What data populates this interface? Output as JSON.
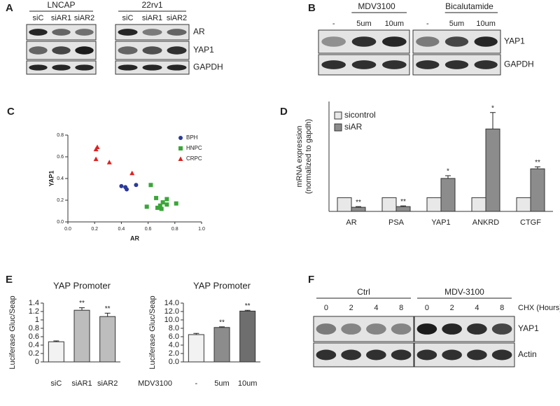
{
  "panels": {
    "a": {
      "label": "A",
      "groups": [
        {
          "name": "LNCAP",
          "lanes": [
            "siC",
            "siAR1",
            "siAR2"
          ]
        },
        {
          "name": "22rv1",
          "lanes": [
            "siC",
            "siAR1",
            "siAR2"
          ]
        }
      ],
      "rows": [
        "AR",
        "YAP1",
        "GAPDH"
      ]
    },
    "b": {
      "label": "B",
      "groups": [
        {
          "name": "MDV3100",
          "lanes": [
            "-",
            "5um",
            "10um"
          ]
        },
        {
          "name": "Bicalutamide",
          "lanes": [
            "-",
            "5um",
            "10um"
          ]
        }
      ],
      "rows": [
        "YAP1",
        "GAPDH"
      ]
    },
    "f": {
      "label": "F",
      "groups": [
        {
          "name": "Ctrl",
          "lanes": [
            "0",
            "2",
            "4",
            "8"
          ]
        },
        {
          "name": "MDV-3100",
          "lanes": [
            "0",
            "2",
            "4",
            "8"
          ]
        }
      ],
      "lane_axis": "CHX (Hours)",
      "rows": [
        "YAP1",
        "Actin"
      ]
    }
  },
  "chart_data": [
    {
      "type": "scatter",
      "panel": "C",
      "xlabel": "AR",
      "ylabel": "YAP1",
      "xlim": [
        0,
        1
      ],
      "ylim": [
        0,
        0.8
      ],
      "xticks": [
        {
          "value": 0,
          "label": "0.0"
        },
        0.2,
        0.4,
        0.6,
        0.8,
        {
          "value": 1,
          "label": "1.0"
        }
      ],
      "yticks": [
        {
          "value": 0,
          "label": "0.0"
        },
        0.2,
        0.4,
        0.6,
        0.8
      ],
      "legend": "top-right",
      "series": [
        {
          "name": "BPH",
          "color": "#2b3a9a",
          "marker": "circle",
          "x": [
            0.4,
            0.43,
            0.44,
            0.51
          ],
          "values": [
            0.33,
            0.32,
            0.3,
            0.34
          ]
        },
        {
          "name": "HNPC",
          "color": "#3aa639",
          "marker": "square",
          "x": [
            0.62,
            0.59,
            0.66,
            0.69,
            0.71,
            0.7,
            0.74,
            0.74,
            0.81,
            0.67
          ],
          "values": [
            0.34,
            0.14,
            0.22,
            0.15,
            0.18,
            0.12,
            0.16,
            0.21,
            0.17,
            0.13
          ]
        },
        {
          "name": "CRPC",
          "color": "#e02020",
          "marker": "triangle",
          "x": [
            0.21,
            0.22,
            0.21,
            0.31,
            0.48
          ],
          "values": [
            0.67,
            0.69,
            0.58,
            0.55,
            0.45
          ]
        }
      ]
    },
    {
      "type": "bar",
      "panel": "D",
      "ylabel": [
        "mRNA expression",
        "(normalized to gapdh)"
      ],
      "ylim": [
        0,
        8
      ],
      "legend": "top-left",
      "categories": [
        "AR",
        "PSA",
        "YAP1",
        "ANKRD",
        "CTGF"
      ],
      "series": [
        {
          "name": "sicontrol",
          "color": "#e8e8e8",
          "values": [
            1,
            1,
            1,
            1,
            1
          ]
        },
        {
          "name": "siAR",
          "color": "#8c8c8c",
          "values": [
            0.3,
            0.35,
            2.4,
            6.0,
            3.1
          ],
          "errors": [
            0.05,
            0.05,
            0.2,
            1.2,
            0.15
          ],
          "significance": [
            "**",
            "**",
            "*",
            "*",
            "**"
          ]
        }
      ]
    },
    {
      "type": "bar",
      "panel": "E",
      "title": "YAP Promoter",
      "ylabel": "Luciferase Gluc/Seap",
      "ylim": [
        0,
        1.4
      ],
      "yticks": [
        0,
        0.2,
        0.4,
        0.6,
        0.8,
        1,
        1.2,
        1.4
      ],
      "categories": [
        "siC",
        "siAR1",
        "siAR2"
      ],
      "values": [
        0.48,
        1.23,
        1.08
      ],
      "errors": [
        0.02,
        0.06,
        0.08
      ],
      "significance": [
        null,
        "**",
        "**"
      ],
      "colors": [
        "#f2f2f2",
        "#bdbdbd",
        "#bdbdbd"
      ]
    },
    {
      "type": "bar",
      "title": "YAP Promoter",
      "ylabel": "Luciferase Gluc/Seap",
      "xlabel": "MDV3100",
      "ylim": [
        0,
        14
      ],
      "yticks": [
        {
          "value": 0,
          "label": "0.0"
        },
        {
          "value": 2,
          "label": "2.0"
        },
        {
          "value": 4,
          "label": "4.0"
        },
        {
          "value": 6,
          "label": "6.0"
        },
        {
          "value": 8,
          "label": "8.0"
        },
        {
          "value": 10,
          "label": "10.0"
        },
        {
          "value": 12,
          "label": "12.0"
        },
        {
          "value": 14,
          "label": "14.0"
        }
      ],
      "categories": [
        "-",
        "5um",
        "10um"
      ],
      "values": [
        6.5,
        8.2,
        12.1
      ],
      "errors": [
        0.3,
        0.15,
        0.2
      ],
      "significance": [
        null,
        "**",
        "**"
      ],
      "colors": [
        "#f2f2f2",
        "#8c8c8c",
        "#6e6e6e"
      ]
    }
  ]
}
